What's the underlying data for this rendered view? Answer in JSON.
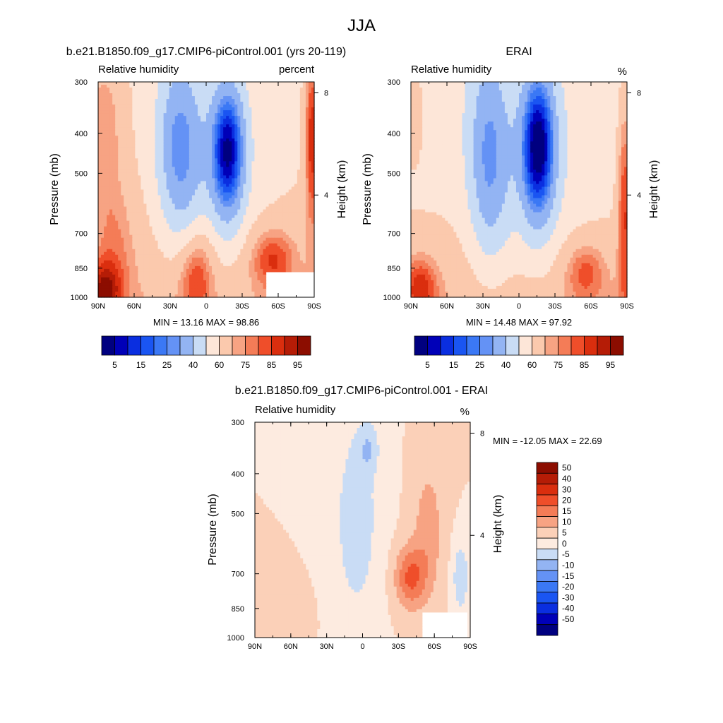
{
  "page_title": "JJA",
  "colors": {
    "rh_scale": [
      "#000080",
      "#0000b8",
      "#0a2ee0",
      "#1a55f2",
      "#3b78f5",
      "#6492f5",
      "#93b4f3",
      "#c9dcf5",
      "#fde6d8",
      "#fbc9ad",
      "#f7a383",
      "#f47c57",
      "#ef4e2a",
      "#da2e0e",
      "#b51c06",
      "#8c0d00"
    ],
    "diff_scale": [
      "#000080",
      "#0000b8",
      "#0a2ee0",
      "#1a55f2",
      "#3b78f5",
      "#6492f5",
      "#93b4f3",
      "#c9dcf5",
      "#fdebe0",
      "#fbd0b8",
      "#f7a383",
      "#f47c57",
      "#ef4e2a",
      "#da2e0e",
      "#b51c06",
      "#8c0d00"
    ]
  },
  "chart_data": [
    {
      "type": "heatmap",
      "name": "model",
      "title": "b.e21.B1850.f09_g17.CMIP6-piControl.001 (yrs 20-119)",
      "left_label": "Relative humidity",
      "right_label": "percent",
      "ylabel": "Pressure (mb)",
      "ylabel_right": "Height (km)",
      "x_ticks": [
        "90N",
        "60N",
        "30N",
        "0",
        "30S",
        "60S",
        "90S"
      ],
      "y_ticks": [
        "300",
        "400",
        "500",
        "700",
        "850",
        "1000"
      ],
      "y_right_ticks": [
        "8",
        "4"
      ],
      "stats": "MIN =  13.16  MAX =  98.86",
      "colorbar_levels": [
        5,
        10,
        15,
        20,
        25,
        30,
        40,
        50,
        60,
        70,
        75,
        80,
        85,
        90,
        95
      ],
      "colorbar_labels": [
        "5",
        "15",
        "25",
        "40",
        "60",
        "75",
        "85",
        "95"
      ],
      "xlim": [
        90,
        -90
      ],
      "ylim": [
        1000,
        300
      ],
      "field_preset": "model"
    },
    {
      "type": "heatmap",
      "name": "erai",
      "title": "ERAI",
      "left_label": "Relative humidity",
      "right_label": "%",
      "ylabel": "Pressure (mb)",
      "ylabel_right": "Height (km)",
      "x_ticks": [
        "90N",
        "60N",
        "30N",
        "0",
        "30S",
        "60S",
        "90S"
      ],
      "y_ticks": [
        "300",
        "400",
        "500",
        "700",
        "850",
        "1000"
      ],
      "y_right_ticks": [
        "8",
        "4"
      ],
      "stats": "MIN =  14.48  MAX =  97.92",
      "colorbar_levels": [
        5,
        10,
        15,
        20,
        25,
        30,
        40,
        50,
        60,
        70,
        75,
        80,
        85,
        90,
        95
      ],
      "colorbar_labels": [
        "5",
        "15",
        "25",
        "40",
        "60",
        "75",
        "85",
        "95"
      ],
      "xlim": [
        90,
        -90
      ],
      "ylim": [
        1000,
        300
      ],
      "field_preset": "erai"
    },
    {
      "type": "heatmap",
      "name": "difference",
      "title": "b.e21.B1850.f09_g17.CMIP6-piControl.001 - ERAI",
      "left_label": "Relative humidity",
      "right_label": "%",
      "ylabel": "Pressure (mb)",
      "ylabel_right": "Height (km)",
      "x_ticks": [
        "90N",
        "60N",
        "30N",
        "0",
        "30S",
        "60S",
        "90S"
      ],
      "y_ticks": [
        "300",
        "400",
        "500",
        "700",
        "850",
        "1000"
      ],
      "y_right_ticks": [
        "8",
        "4"
      ],
      "stats": "MIN = -12.05  MAX =  22.69",
      "colorbar_levels": [
        -50,
        -40,
        -30,
        -20,
        -15,
        -10,
        -5,
        0,
        5,
        10,
        15,
        20,
        30,
        40,
        50
      ],
      "colorbar_labels": [
        "50",
        "40",
        "30",
        "20",
        "15",
        "10",
        "5",
        "0",
        "-5",
        "-10",
        "-15",
        "-20",
        "-30",
        "-40",
        "-50"
      ],
      "xlim": [
        90,
        -90
      ],
      "ylim": [
        1000,
        300
      ],
      "field_preset": "difference"
    }
  ]
}
